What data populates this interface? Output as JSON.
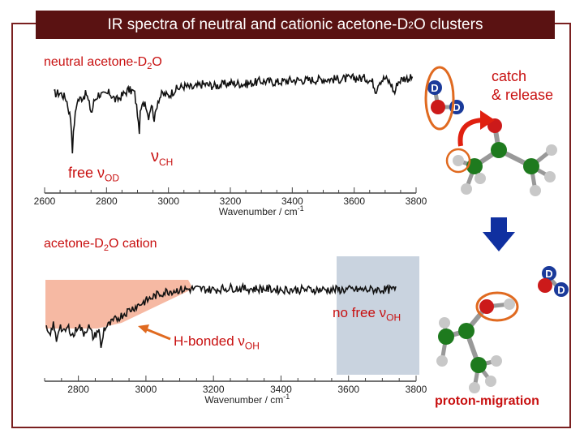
{
  "title": {
    "main": "IR spectra of neutral and cationic acetone-D",
    "sub": "2",
    "rest": "O clusters"
  },
  "labels": {
    "neutral": {
      "pre": "neutral acetone-D",
      "sub": "2",
      "post": "O"
    },
    "cation": {
      "pre": "acetone-D",
      "sub": "2",
      "post": "O cation"
    },
    "catch_release": [
      "catch",
      "& release"
    ],
    "free_od": {
      "pre": "free ",
      "nu": "ν",
      "sub": "OD"
    },
    "nu_ch": {
      "nu": "ν",
      "sub": "CH"
    },
    "no_free_oh": {
      "pre": "no free ",
      "nu": "ν",
      "sub": "OH"
    },
    "h_bonded": {
      "pre": "H-bonded ",
      "nu": "ν",
      "sub": "OH"
    },
    "proton_migration": "proton-migration",
    "atom_d": "D"
  },
  "colors": {
    "title_bg": "#5a1212",
    "frame": "#7a2020",
    "highlight": "#e06a20",
    "red_text": "#c81010",
    "cation_band": "#f6b9a3",
    "gray_band": "#c9d3df",
    "arrow_blue": "#1030a0",
    "atom_o": "#cc1a1a",
    "atom_c": "#1e7a1e",
    "atom_h": "#c8c8c8",
    "atom_d": "#1a3a9a"
  },
  "chart_data": [
    {
      "type": "line",
      "title": "neutral acetone-D2O",
      "xlabel": "Wavenumber / cm-1",
      "xlim": [
        2600,
        3800
      ],
      "xticks": [
        2600,
        2800,
        3000,
        3200,
        3400,
        3600,
        3800
      ],
      "series": [
        {
          "values": [
            [
              2630,
              0.62
            ],
            [
              2650,
              0.63
            ],
            [
              2670,
              0.57
            ],
            [
              2685,
              0.35
            ],
            [
              2690,
              0.05
            ],
            [
              2695,
              0.3
            ],
            [
              2705,
              0.55
            ],
            [
              2720,
              0.58
            ],
            [
              2735,
              0.62
            ],
            [
              2745,
              0.5
            ],
            [
              2752,
              0.42
            ],
            [
              2760,
              0.55
            ],
            [
              2775,
              0.62
            ],
            [
              2790,
              0.6
            ],
            [
              2810,
              0.63
            ],
            [
              2830,
              0.55
            ],
            [
              2850,
              0.6
            ],
            [
              2870,
              0.66
            ],
            [
              2890,
              0.64
            ],
            [
              2900,
              0.42
            ],
            [
              2905,
              0.2
            ],
            [
              2910,
              0.45
            ],
            [
              2925,
              0.55
            ],
            [
              2935,
              0.38
            ],
            [
              2945,
              0.52
            ],
            [
              2955,
              0.35
            ],
            [
              2965,
              0.55
            ],
            [
              2980,
              0.62
            ],
            [
              3000,
              0.6
            ],
            [
              3020,
              0.66
            ],
            [
              3050,
              0.7
            ],
            [
              3080,
              0.68
            ],
            [
              3110,
              0.72
            ],
            [
              3150,
              0.7
            ],
            [
              3200,
              0.73
            ],
            [
              3250,
              0.72
            ],
            [
              3300,
              0.75
            ],
            [
              3350,
              0.74
            ],
            [
              3400,
              0.76
            ],
            [
              3450,
              0.76
            ],
            [
              3500,
              0.77
            ],
            [
              3550,
              0.77
            ],
            [
              3600,
              0.78
            ],
            [
              3640,
              0.78
            ],
            [
              3660,
              0.74
            ],
            [
              3670,
              0.65
            ],
            [
              3680,
              0.75
            ],
            [
              3700,
              0.78
            ],
            [
              3720,
              0.72
            ],
            [
              3730,
              0.62
            ],
            [
              3740,
              0.74
            ],
            [
              3760,
              0.78
            ],
            [
              3790,
              0.78
            ]
          ]
        }
      ]
    },
    {
      "type": "line",
      "title": "acetone-D2O cation",
      "xlabel": "Wavenumber / cm-1",
      "xlim": [
        2700,
        3800
      ],
      "xticks": [
        2800,
        3000,
        3200,
        3400,
        3600,
        3800
      ],
      "series": [
        {
          "values": [
            [
              2705,
              0.3
            ],
            [
              2715,
              0.2
            ],
            [
              2725,
              0.36
            ],
            [
              2735,
              0.18
            ],
            [
              2745,
              0.35
            ],
            [
              2755,
              0.25
            ],
            [
              2770,
              0.32
            ],
            [
              2785,
              0.22
            ],
            [
              2800,
              0.35
            ],
            [
              2815,
              0.25
            ],
            [
              2830,
              0.33
            ],
            [
              2845,
              0.2
            ],
            [
              2860,
              0.3
            ],
            [
              2868,
              0.08
            ],
            [
              2875,
              0.3
            ],
            [
              2890,
              0.34
            ],
            [
              2910,
              0.4
            ],
            [
              2930,
              0.45
            ],
            [
              2950,
              0.5
            ],
            [
              2970,
              0.54
            ],
            [
              2990,
              0.58
            ],
            [
              3010,
              0.62
            ],
            [
              3030,
              0.66
            ],
            [
              3060,
              0.7
            ],
            [
              3100,
              0.72
            ],
            [
              3150,
              0.73
            ],
            [
              3200,
              0.72
            ],
            [
              3250,
              0.74
            ],
            [
              3300,
              0.73
            ],
            [
              3350,
              0.73
            ],
            [
              3400,
              0.72
            ],
            [
              3450,
              0.72
            ],
            [
              3500,
              0.72
            ],
            [
              3550,
              0.72
            ],
            [
              3600,
              0.72
            ],
            [
              3650,
              0.72
            ],
            [
              3700,
              0.72
            ],
            [
              3740,
              0.72
            ]
          ]
        }
      ]
    }
  ]
}
